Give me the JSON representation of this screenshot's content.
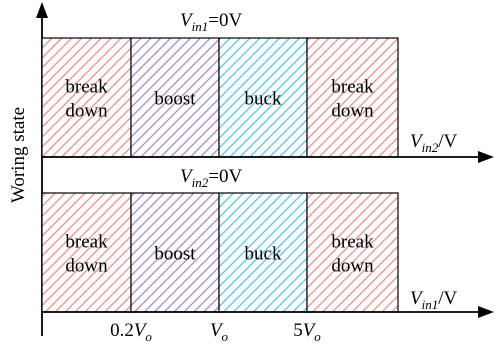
{
  "y_axis_label": "Woring state",
  "panels": [
    {
      "header": {
        "var": "V",
        "sub": "in1",
        "eq": "=0V"
      },
      "x_axis": {
        "var": "V",
        "sub": "in2",
        "unit": "/V"
      },
      "regions": [
        {
          "label_lines": [
            "break",
            "down"
          ],
          "color": "#e5928f"
        },
        {
          "label_lines": [
            "boost"
          ],
          "color": "#a98bc6"
        },
        {
          "label_lines": [
            "buck"
          ],
          "color": "#5dc1e8"
        },
        {
          "label_lines": [
            "break",
            "down"
          ],
          "color": "#e5928f"
        }
      ]
    },
    {
      "header": {
        "var": "V",
        "sub": "in2",
        "eq": "=0V"
      },
      "x_axis": {
        "var": "V",
        "sub": "in1",
        "unit": "/V"
      },
      "regions": [
        {
          "label_lines": [
            "break",
            "down"
          ],
          "color": "#e5928f"
        },
        {
          "label_lines": [
            "boost"
          ],
          "color": "#a98bc6"
        },
        {
          "label_lines": [
            "buck"
          ],
          "color": "#5dc1e8"
        },
        {
          "label_lines": [
            "break",
            "down"
          ],
          "color": "#e5928f"
        }
      ]
    }
  ],
  "ticks": [
    {
      "pre": "0.2",
      "var": "V",
      "sub": "o"
    },
    {
      "pre": "",
      "var": "V",
      "sub": "o"
    },
    {
      "pre": "5",
      "var": "V",
      "sub": "o"
    }
  ]
}
